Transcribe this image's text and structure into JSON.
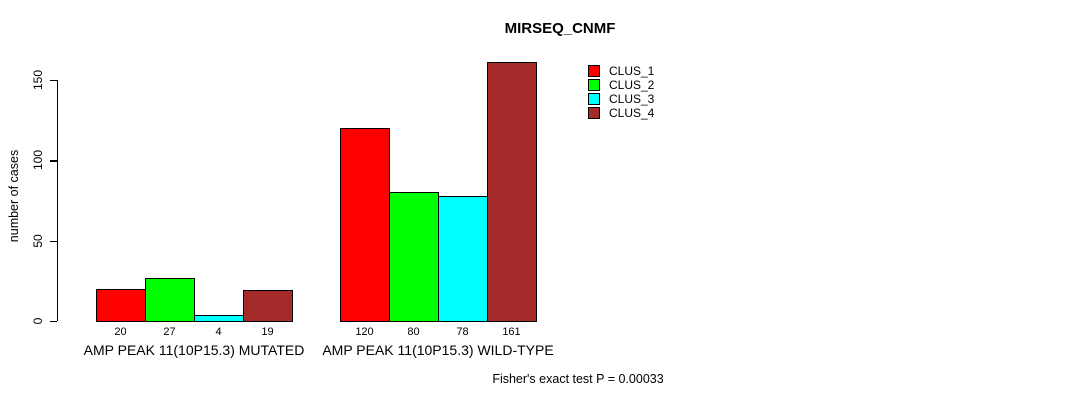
{
  "title": "MIRSEQ_CNMF",
  "y_axis_label": "number of cases",
  "footer": "Fisher's exact test P = 0.00033",
  "chart_data": {
    "type": "bar",
    "title": "MIRSEQ_CNMF",
    "xlabel": "",
    "ylabel": "number of cases",
    "categories": [
      "AMP PEAK 11(10P15.3) MUTATED",
      "AMP PEAK 11(10P15.3) WILD-TYPE"
    ],
    "series": [
      {
        "name": "CLUS_1",
        "color": "#FF0000",
        "values": [
          20,
          120
        ]
      },
      {
        "name": "CLUS_2",
        "color": "#00FF00",
        "values": [
          27,
          80
        ]
      },
      {
        "name": "CLUS_3",
        "color": "#00FFFF",
        "values": [
          4,
          78
        ]
      },
      {
        "name": "CLUS_4",
        "color": "#A52A2A",
        "values": [
          19,
          161
        ]
      }
    ],
    "bar_value_labels": [
      [
        "20",
        "27",
        "4",
        "19"
      ],
      [
        "120",
        "80",
        "78",
        "161"
      ]
    ],
    "yticks": [
      0,
      50,
      100,
      150
    ],
    "ylim": [
      0,
      165
    ],
    "grid": false,
    "legend_position": "top-right",
    "annotation": "Fisher's exact test P = 0.00033"
  }
}
